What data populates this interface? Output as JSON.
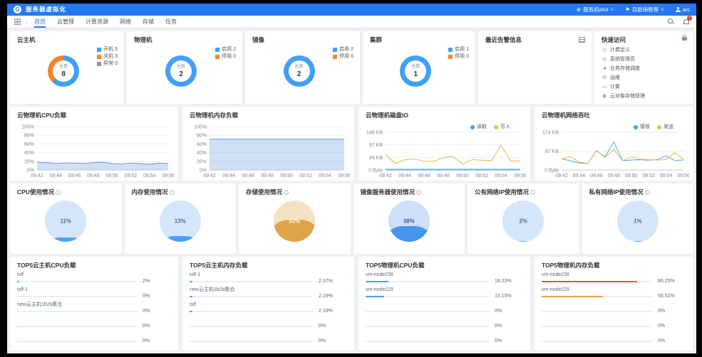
{
  "topbar": {
    "title": "服务器虚拟化",
    "region": "服务机eKit",
    "console": "自助销售帮",
    "user": "arc"
  },
  "nav": {
    "items": [
      {
        "label": "首页",
        "active": true
      },
      {
        "label": "云管理",
        "active": false
      },
      {
        "label": "计算资源",
        "active": false
      },
      {
        "label": "网络",
        "active": false
      },
      {
        "label": "存储",
        "active": false
      },
      {
        "label": "任务",
        "active": false
      }
    ],
    "badge": "1"
  },
  "overview_cards": [
    {
      "title": "云主机",
      "center_label": "总数",
      "total": "8",
      "legend": [
        {
          "label": "开机",
          "value": "5",
          "color": "#41a0f5"
        },
        {
          "label": "关机",
          "value": "3",
          "color": "#f2862c"
        },
        {
          "label": "异常",
          "value": "0",
          "color": "#8d98a9"
        }
      ]
    },
    {
      "title": "物理机",
      "center_label": "总数",
      "total": "2",
      "legend": [
        {
          "label": "启用",
          "value": "2",
          "color": "#41a0f5"
        },
        {
          "label": "停用",
          "value": "0",
          "color": "#f2862c"
        }
      ]
    },
    {
      "title": "镜像",
      "center_label": "总数",
      "total": "2",
      "legend": [
        {
          "label": "启用",
          "value": "2",
          "color": "#41a0f5"
        },
        {
          "label": "停用",
          "value": "0",
          "color": "#f2862c"
        }
      ]
    },
    {
      "title": "集群",
      "center_label": "总数",
      "total": "1",
      "legend": [
        {
          "label": "启用",
          "value": "1",
          "color": "#41a0f5"
        },
        {
          "label": "停用",
          "value": "0",
          "color": "#f2862c"
        }
      ]
    }
  ],
  "recent_alerts": {
    "title": "最近告警信息"
  },
  "quick_access": {
    "title": "快速访问",
    "items": [
      {
        "icon": "clock",
        "label": "计费定义"
      },
      {
        "icon": "circle",
        "label": "系统管理员"
      },
      {
        "icon": "speaker",
        "label": "业务存储调度"
      },
      {
        "icon": "gear",
        "label": "运维"
      },
      {
        "icon": "folder",
        "label": "计算"
      },
      {
        "icon": "target",
        "label": "云对象存储管理"
      }
    ]
  },
  "chart_data": [
    {
      "type": "area",
      "title": "云物理机CPU负载",
      "x": [
        "09:42",
        "09:44",
        "09:46",
        "09:48",
        "09:50",
        "09:52",
        "09:54",
        "09:56"
      ],
      "ylim": [
        0,
        100
      ],
      "yticks": [
        "100%",
        "80%",
        "60%",
        "40%",
        "20%",
        "0%"
      ],
      "series": [
        {
          "name": "CPU",
          "color": "#5f9bd8",
          "fill": "rgba(120,170,225,0.35)",
          "values": [
            18,
            17,
            15,
            16,
            16,
            15,
            17,
            18,
            15,
            14,
            16,
            15,
            13,
            16,
            15
          ]
        }
      ]
    },
    {
      "type": "area",
      "title": "云物理机内存负载",
      "x": [
        "09:42",
        "09:44",
        "09:46",
        "09:48",
        "09:50",
        "09:52",
        "09:54",
        "09:56"
      ],
      "ylim": [
        0,
        100
      ],
      "yticks": [
        "100%",
        "80%",
        "60%",
        "40%",
        "20%",
        "0%"
      ],
      "series": [
        {
          "name": "内存",
          "color": "#5f9bd8",
          "fill": "rgba(120,170,225,0.35)",
          "values": [
            71,
            71,
            71,
            71,
            71,
            71,
            71,
            71,
            71,
            71,
            71,
            71,
            71,
            71,
            71
          ]
        }
      ]
    },
    {
      "type": "line",
      "title": "云物理机磁盘IO",
      "x": [
        "09:42",
        "09:44",
        "09:46",
        "09:48",
        "09:50",
        "09:52",
        "09:54",
        "09:56"
      ],
      "ylim": [
        0,
        146
      ],
      "yticks": [
        "146 KB",
        "97 KB",
        "49 KB",
        "0 Byte"
      ],
      "legend": [
        {
          "name": "读取",
          "color": "#41a0f5"
        },
        {
          "name": "写入",
          "color": "#f6b93d"
        }
      ],
      "series": [
        {
          "name": "读取",
          "color": "#63aaf5",
          "width": 2,
          "values": [
            1.5,
            1.5,
            1.5,
            1.5,
            1.5,
            1.5,
            1.5,
            1.5,
            1.5,
            1.5,
            1.5,
            1.5,
            1.5,
            1.5,
            1.5
          ]
        },
        {
          "name": "写入",
          "color": "#efb33e",
          "width": 1,
          "values": [
            60,
            25,
            40,
            42,
            34,
            33,
            48,
            52,
            23,
            40,
            38,
            36,
            97,
            34,
            35
          ]
        }
      ]
    },
    {
      "type": "line",
      "title": "云物理机网络吞吐",
      "x": [
        "09:42",
        "09:44",
        "09:46",
        "09:48",
        "09:50",
        "09:52",
        "09:54",
        "09:56"
      ],
      "ylim": [
        0,
        174
      ],
      "yticks": [
        "174 KB",
        "87 KB",
        "0 Byte"
      ],
      "legend": [
        {
          "name": "接收",
          "color": "#41a0f5"
        },
        {
          "name": "发送",
          "color": "#f6b93d"
        }
      ],
      "series": [
        {
          "name": "接收",
          "color": "#4ea3f2",
          "width": 1,
          "values": [
            52,
            42,
            32,
            30,
            88,
            62,
            130,
            43,
            46,
            47,
            45,
            48,
            65,
            44,
            46
          ]
        },
        {
          "name": "发送",
          "color": "#efb33e",
          "width": 1,
          "values": [
            50,
            62,
            36,
            30,
            90,
            58,
            95,
            43,
            60,
            50,
            47,
            46,
            48,
            80,
            50
          ]
        }
      ]
    }
  ],
  "usage_gauges": [
    {
      "title": "CPU使用情况",
      "percent": "11%",
      "value": 11,
      "light": "#d3e6fa",
      "fill": "#4aa0f6",
      "text": "#52688e"
    },
    {
      "title": "内存使用情况",
      "percent": "13%",
      "value": 13,
      "light": "#d3e6fa",
      "fill": "#4aa0f6",
      "text": "#52688e"
    },
    {
      "title": "存储使用情况",
      "percent": "53%",
      "value": 53,
      "light": "#f5e2c2",
      "fill": "#e0a348",
      "text": "#ffffff"
    },
    {
      "title": "镜像服务器使用情况",
      "percent": "38%",
      "value": 38,
      "light": "#cde0f6",
      "fill": "#4596ef",
      "text": "#3f5e94"
    },
    {
      "title": "公有网络IP使用情况",
      "percent": "2%",
      "value": 2,
      "light": "#d3e6fa",
      "fill": "#4aa0f6",
      "text": "#52688e"
    },
    {
      "title": "私有网络IP使用情况",
      "percent": "1%",
      "value": 1,
      "light": "#d3e6fa",
      "fill": "#4aa0f6",
      "text": "#52688e"
    }
  ],
  "top_lists": [
    {
      "title": "TOP5云主机CPU负载",
      "items": [
        {
          "name": "txlf",
          "value": "2%",
          "pct": 2,
          "color": "#41a0f5"
        },
        {
          "name": "txlf-1",
          "value": "0%",
          "pct": 0,
          "color": "#41a0f5"
        },
        {
          "name": "new云主机1b2b集合",
          "value": "0%",
          "pct": 0,
          "color": "#41a0f5"
        },
        {
          "name": "",
          "value": "0%",
          "pct": 0,
          "color": "#41a0f5"
        },
        {
          "name": "",
          "value": "0%",
          "pct": 0,
          "color": "#41a0f5"
        }
      ]
    },
    {
      "title": "TOP5云主机内存负载",
      "items": [
        {
          "name": "txlf-1",
          "value": "2.37%",
          "pct": 2.37,
          "color": "#41a0f5"
        },
        {
          "name": "new云主机1b2b集合",
          "value": "2.19%",
          "pct": 2.19,
          "color": "#41a0f5"
        },
        {
          "name": "txlf",
          "value": "2.19%",
          "pct": 2.19,
          "color": "#41a0f5"
        },
        {
          "name": "",
          "value": "0%",
          "pct": 0,
          "color": "#41a0f5"
        },
        {
          "name": "",
          "value": "0%",
          "pct": 0,
          "color": "#41a0f5"
        }
      ]
    },
    {
      "title": "TOP5物理机CPU负载",
      "items": [
        {
          "name": "vm-node236",
          "value": "18.23%",
          "pct": 18.23,
          "color": "#41a0f5"
        },
        {
          "name": "vm-node229",
          "value": "15.15%",
          "pct": 15.15,
          "color": "#41a0f5"
        },
        {
          "name": "",
          "value": "0%",
          "pct": 0,
          "color": "#41a0f5"
        },
        {
          "name": "",
          "value": "0%",
          "pct": 0,
          "color": "#41a0f5"
        },
        {
          "name": "",
          "value": "0%",
          "pct": 0,
          "color": "#41a0f5"
        }
      ]
    },
    {
      "title": "TOP5物理机内存负载",
      "items": [
        {
          "name": "vm-node236",
          "value": "86.25%",
          "pct": 86.25,
          "color": "#e1504a"
        },
        {
          "name": "vm-node229",
          "value": "55.52%",
          "pct": 55.52,
          "color": "#eda33b"
        },
        {
          "name": "",
          "value": "0%",
          "pct": 0,
          "color": "#41a0f5"
        },
        {
          "name": "",
          "value": "0%",
          "pct": 0,
          "color": "#41a0f5"
        },
        {
          "name": "",
          "value": "0%",
          "pct": 0,
          "color": "#41a0f5"
        }
      ]
    }
  ]
}
